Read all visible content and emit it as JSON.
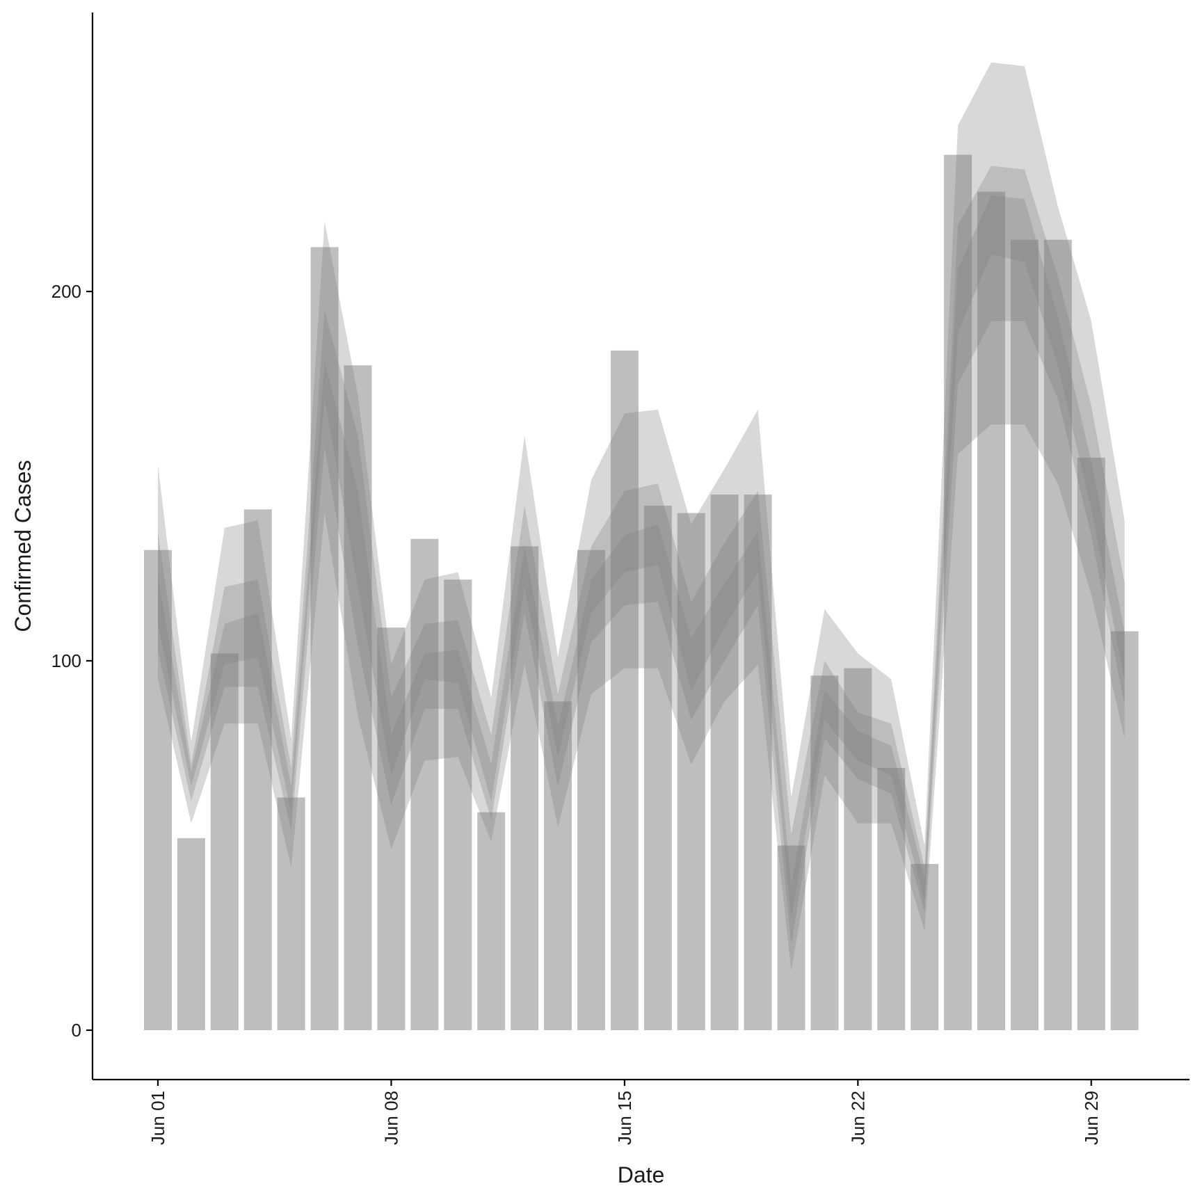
{
  "chart_data": {
    "type": "bar",
    "xlabel": "Date",
    "ylabel": "Confirmed Cases",
    "ylim": [
      -13,
      275
    ],
    "y_ticks": [
      0,
      100,
      200
    ],
    "x_ticks": [
      {
        "date": "2020-06-01",
        "label": "Jun 01"
      },
      {
        "date": "2020-06-08",
        "label": "Jun 08"
      },
      {
        "date": "2020-06-15",
        "label": "Jun 15"
      },
      {
        "date": "2020-06-22",
        "label": "Jun 22"
      },
      {
        "date": "2020-06-29",
        "label": "Jun 29"
      }
    ],
    "dates": [
      "2020-06-01",
      "2020-06-02",
      "2020-06-03",
      "2020-06-04",
      "2020-06-05",
      "2020-06-06",
      "2020-06-07",
      "2020-06-08",
      "2020-06-09",
      "2020-06-10",
      "2020-06-11",
      "2020-06-12",
      "2020-06-13",
      "2020-06-14",
      "2020-06-15",
      "2020-06-16",
      "2020-06-17",
      "2020-06-18",
      "2020-06-19",
      "2020-06-20",
      "2020-06-21",
      "2020-06-22",
      "2020-06-23",
      "2020-06-24",
      "2020-06-25",
      "2020-06-26",
      "2020-06-27",
      "2020-06-28",
      "2020-06-29",
      "2020-06-30"
    ],
    "confirmed": [
      130,
      52,
      102,
      141,
      63,
      212,
      180,
      109,
      133,
      122,
      59,
      131,
      89,
      130,
      184,
      142,
      140,
      145,
      145,
      50,
      96,
      98,
      71,
      45,
      237,
      227,
      214,
      214,
      155,
      108
    ],
    "bands": [
      {
        "level": "outer",
        "lower": [
          95,
          56,
          83,
          83,
          44,
          140,
          85,
          49,
          73,
          74,
          51,
          99,
          55,
          91,
          98,
          98,
          72,
          89,
          99,
          16,
          69,
          56,
          56,
          27,
          156,
          164,
          164,
          148,
          118,
          79
        ],
        "upper": [
          153,
          78,
          136,
          138,
          79,
          219,
          172,
          99,
          122,
          124,
          90,
          161,
          101,
          149,
          167,
          168,
          137,
          152,
          168,
          63,
          114,
          102,
          95,
          50,
          245,
          262,
          261,
          223,
          192,
          138
        ]
      },
      {
        "level": "middle",
        "lower": [
          103,
          62,
          93,
          93,
          54,
          158,
          104,
          61,
          87,
          87,
          57,
          113,
          66,
          105,
          115,
          116,
          84,
          100,
          115,
          23,
          79,
          68,
          64,
          32,
          175,
          192,
          192,
          171,
          134,
          88
        ],
        "upper": [
          135,
          72,
          120,
          122,
          71,
          195,
          161,
          90,
          110,
          111,
          80,
          142,
          91,
          131,
          146,
          148,
          116,
          132,
          146,
          53,
          100,
          86,
          83,
          44,
          218,
          234,
          233,
          204,
          169,
          121
        ]
      },
      {
        "level": "inner",
        "lower": [
          110,
          66,
          99,
          101,
          59,
          171,
          120,
          69,
          95,
          94,
          62,
          120,
          74,
          113,
          124,
          126,
          92,
          109,
          124,
          30,
          84,
          73,
          69,
          35,
          189,
          210,
          208,
          180,
          141,
          95
        ],
        "upper": [
          123,
          70,
          110,
          113,
          66,
          181,
          146,
          80,
          102,
          103,
          72,
          131,
          82,
          122,
          134,
          137,
          106,
          121,
          135,
          39,
          92,
          81,
          77,
          41,
          206,
          226,
          225,
          193,
          154,
          108
        ]
      }
    ],
    "colors": {
      "bar": "#bebebe",
      "band": "#7f7f7f",
      "axis": "#000000",
      "background": "#ffffff"
    },
    "grid": false,
    "legend": "none"
  }
}
